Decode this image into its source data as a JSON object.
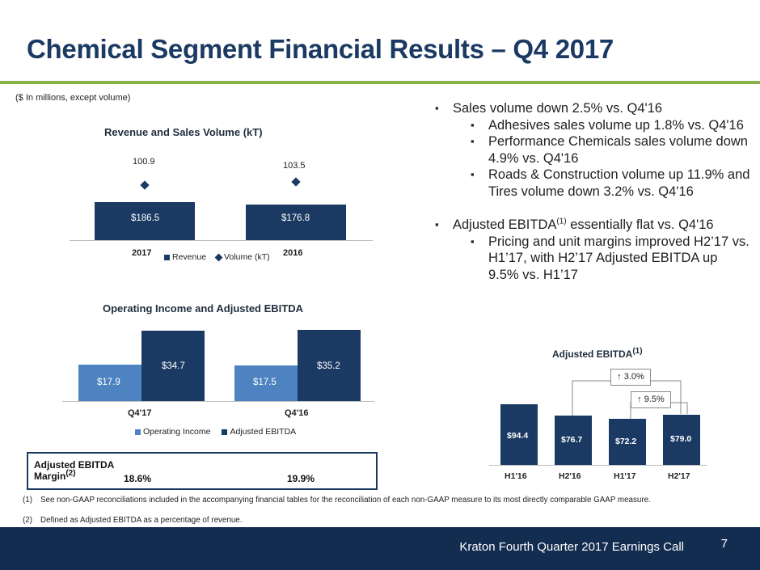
{
  "title": "Chemical Segment Financial Results – Q4 2017",
  "units_note": "($ In millions, except volume)",
  "chart_data": [
    {
      "type": "bar",
      "title": "Revenue and Sales Volume (kT)",
      "categories": [
        "2017",
        "2016"
      ],
      "series": [
        {
          "name": "Revenue",
          "values": [
            186.5,
            176.8
          ],
          "labels": [
            "$186.5",
            "$176.8"
          ],
          "color": "#1b3a63"
        },
        {
          "name": "Volume (kT)",
          "values": [
            100.9,
            103.5
          ],
          "labels": [
            "100.9",
            "103.5"
          ],
          "color": "#1b3a63"
        }
      ]
    },
    {
      "type": "bar",
      "title": "Operating Income and Adjusted EBITDA",
      "categories": [
        "Q4'17",
        "Q4'16"
      ],
      "series": [
        {
          "name": "Operating Income",
          "values": [
            17.9,
            17.5
          ],
          "labels": [
            "$17.9",
            "$17.5"
          ],
          "color": "#4e83c1"
        },
        {
          "name": "Adjusted EBITDA",
          "values": [
            34.7,
            35.2
          ],
          "labels": [
            "$34.7",
            "$35.2"
          ],
          "color": "#1b3a63"
        }
      ]
    },
    {
      "type": "bar",
      "title": "Adjusted EBITDA",
      "title_sup": "(1)",
      "categories": [
        "H1'16",
        "H2'16",
        "H1'17",
        "H2'17"
      ],
      "values": [
        94.4,
        76.7,
        72.2,
        79.0
      ],
      "labels": [
        "$94.4",
        "$76.7",
        "$72.2",
        "$79.0"
      ],
      "color": "#1b3a63",
      "annotations": [
        "↑ 3.0%",
        "↑ 9.5%"
      ]
    }
  ],
  "bullets": {
    "l1": "Sales volume down 2.5% vs. Q4'16",
    "l1_sub1": "Adhesives sales volume up 1.8% vs. Q4'16",
    "l1_sub2": "Performance Chemicals sales volume down 4.9% vs. Q4'16",
    "l1_sub3": "Roads & Construction volume up 11.9% and Tires volume down 3.2% vs. Q4'16",
    "l2_pre": "Adjusted EBITDA",
    "l2_sup": "(1)",
    "l2_post": " essentially flat vs. Q4'16",
    "l2_sub1": "Pricing and unit margins improved H2’17 vs. H1’17, with H2’17 Adjusted EBITDA up 9.5% vs. H1’17"
  },
  "margin": {
    "label_line1": "Adjusted EBITDA",
    "label_line2": "Margin",
    "label_sup": "(2)",
    "values": [
      "18.6%",
      "19.9%"
    ]
  },
  "footnotes": [
    {
      "num": "(1)",
      "text": "See non-GAAP reconciliations included in the accompanying financial tables for the reconciliation of each non-GAAP measure to its most directly comparable GAAP measure."
    },
    {
      "num": "(2)",
      "text": "Defined as Adjusted EBITDA as a percentage of revenue."
    }
  ],
  "footer": {
    "text": "Kraton Fourth Quarter 2017 Earnings Call",
    "page": "7"
  }
}
